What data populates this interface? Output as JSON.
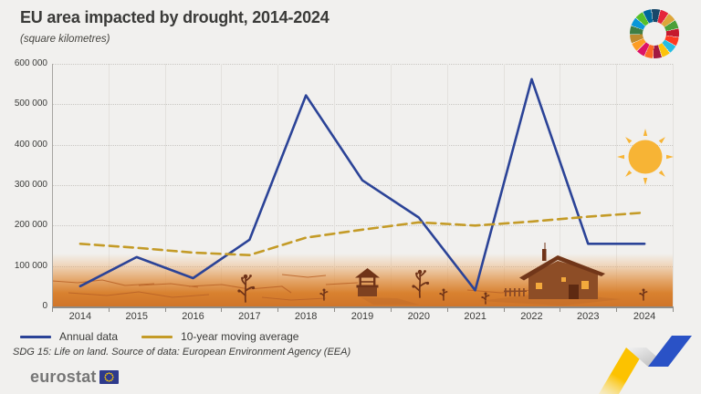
{
  "header": {
    "title": "EU area impacted by drought, 2014-2024",
    "subtitle": "(square kilometres)"
  },
  "legend": [
    {
      "label": "Annual data",
      "color": "#2b4397"
    },
    {
      "label": "10-year moving average",
      "color": "#c49b27"
    }
  ],
  "source_note": "SDG 15: Life on land. Source of data: European Environment Agency (EEA)",
  "footer": {
    "brand": "eurostat"
  },
  "colors": {
    "background": "#f1f0ee",
    "annual_line": "#2b4397",
    "moving_average_line": "#c49b27",
    "ground_orange": "#d0752a",
    "sun": "#f7b435",
    "illustration_brown": "#6f3318"
  },
  "sdg_wheel_colors": [
    "#19486A",
    "#E5243B",
    "#DDA63A",
    "#4C9F38",
    "#C5192D",
    "#FF3A21",
    "#26BDE2",
    "#FCC30B",
    "#A21942",
    "#FD6925",
    "#DD1367",
    "#FD9D24",
    "#BF8B2E",
    "#3F7E44",
    "#0A97D9",
    "#56C02B",
    "#00689D"
  ],
  "chart_data": {
    "type": "line",
    "title": "EU area impacted by drought, 2014-2024",
    "subtitle": "(square kilometres)",
    "categories": [
      "2014",
      "2015",
      "2016",
      "2017",
      "2018",
      "2019",
      "2020",
      "2021",
      "2022",
      "2023",
      "2024"
    ],
    "series": [
      {
        "name": "Annual data",
        "color": "#2b4397",
        "dash": "none",
        "values": [
          50000,
          122000,
          70000,
          165000,
          522000,
          312000,
          220000,
          40000,
          562000,
          155000,
          155000
        ]
      },
      {
        "name": "10-year moving average",
        "color": "#c49b27",
        "dash": "10 6",
        "values": [
          155000,
          145000,
          133000,
          127000,
          170000,
          190000,
          208000,
          200000,
          210000,
          222000,
          232000
        ]
      }
    ],
    "xlabel": "",
    "ylabel": "square kilometres",
    "ylim": [
      0,
      600000
    ],
    "y_tick_step": 100000,
    "y_tick_labels": [
      "0",
      "100 000",
      "200 000",
      "300 000",
      "400 000",
      "500 000",
      "600 000"
    ],
    "grid": true,
    "legend_position": "bottom"
  }
}
